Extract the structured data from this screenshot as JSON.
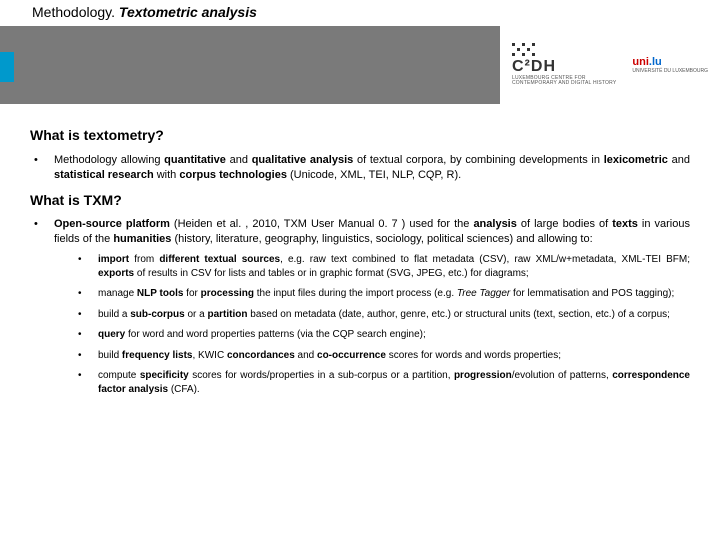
{
  "header": {
    "title_prefix": "Methodology. ",
    "title_emph": "Textometric analysis",
    "logo1_main": "C²DH",
    "logo1_sub1": "LUXEMBOURG CENTRE FOR",
    "logo1_sub2": "CONTEMPORARY AND DIGITAL HISTORY",
    "logo2_main": "uni",
    "logo2_suffix": ".lu",
    "logo2_sub": "UNIVERSITÉ DU LUXEMBOURG"
  },
  "section1": {
    "heading": "What is textometry?",
    "p1a": "Methodology allowing ",
    "p1b": "quantitative",
    "p1c": " and ",
    "p1d": "qualitative analysis",
    "p1e": " of textual corpora, by combining developments in ",
    "p1f": "lexicometric",
    "p1g": " and ",
    "p1h": "statistical research",
    "p1i": " with ",
    "p1j": "corpus technologies",
    "p1k": " (Unicode, XML, TEI, NLP, CQP, R)."
  },
  "section2": {
    "heading": "What is TXM?",
    "intro_a": "Open-source platform",
    "intro_b": " (Heiden et al. , 2010, TXM User Manual 0. 7 ) used for the ",
    "intro_c": "analysis",
    "intro_d": " of large bodies of ",
    "intro_e": "texts",
    "intro_f": " in various fields of the ",
    "intro_g": "humanities",
    "intro_h": " (history, literature, geography, linguistics, sociology, political sciences) and allowing to:",
    "b1_a": "import",
    "b1_b": " from ",
    "b1_c": "different textual sources",
    "b1_d": ", e.g. raw text combined to flat metadata (CSV), raw XML/w+metadata, XML-TEI BFM; ",
    "b1_e": "exports",
    "b1_f": " of results in CSV for lists and tables or in graphic format (SVG, JPEG, etc.) for diagrams;",
    "b2_a": "manage ",
    "b2_b": "NLP tools",
    "b2_c": " for ",
    "b2_d": "processing",
    "b2_e": " the input files during the import process (e.g. ",
    "b2_f": "Tree Tagger",
    "b2_g": " for lemmatisation and POS tagging);",
    "b3_a": "build a ",
    "b3_b": "sub-corpus",
    "b3_c": " or a ",
    "b3_d": "partition",
    "b3_e": " based on metadata (date, author, genre, etc.) or structural units (text, section, etc.) of a corpus;",
    "b4_a": "query",
    "b4_b": " for word and word properties patterns (via the CQP search engine);",
    "b5_a": "build ",
    "b5_b": "frequency lists",
    "b5_c": ", KWIC ",
    "b5_d": "concordances",
    "b5_e": " and ",
    "b5_f": "co-occurrence",
    "b5_g": " scores for words and words properties;",
    "b6_a": "compute ",
    "b6_b": "specificity",
    "b6_c": " scores for words/properties in a sub-corpus or a partition, ",
    "b6_d": "progression",
    "b6_e": "/evolution of patterns, ",
    "b6_f": "correspondence factor analysis",
    "b6_g": " (CFA)."
  }
}
